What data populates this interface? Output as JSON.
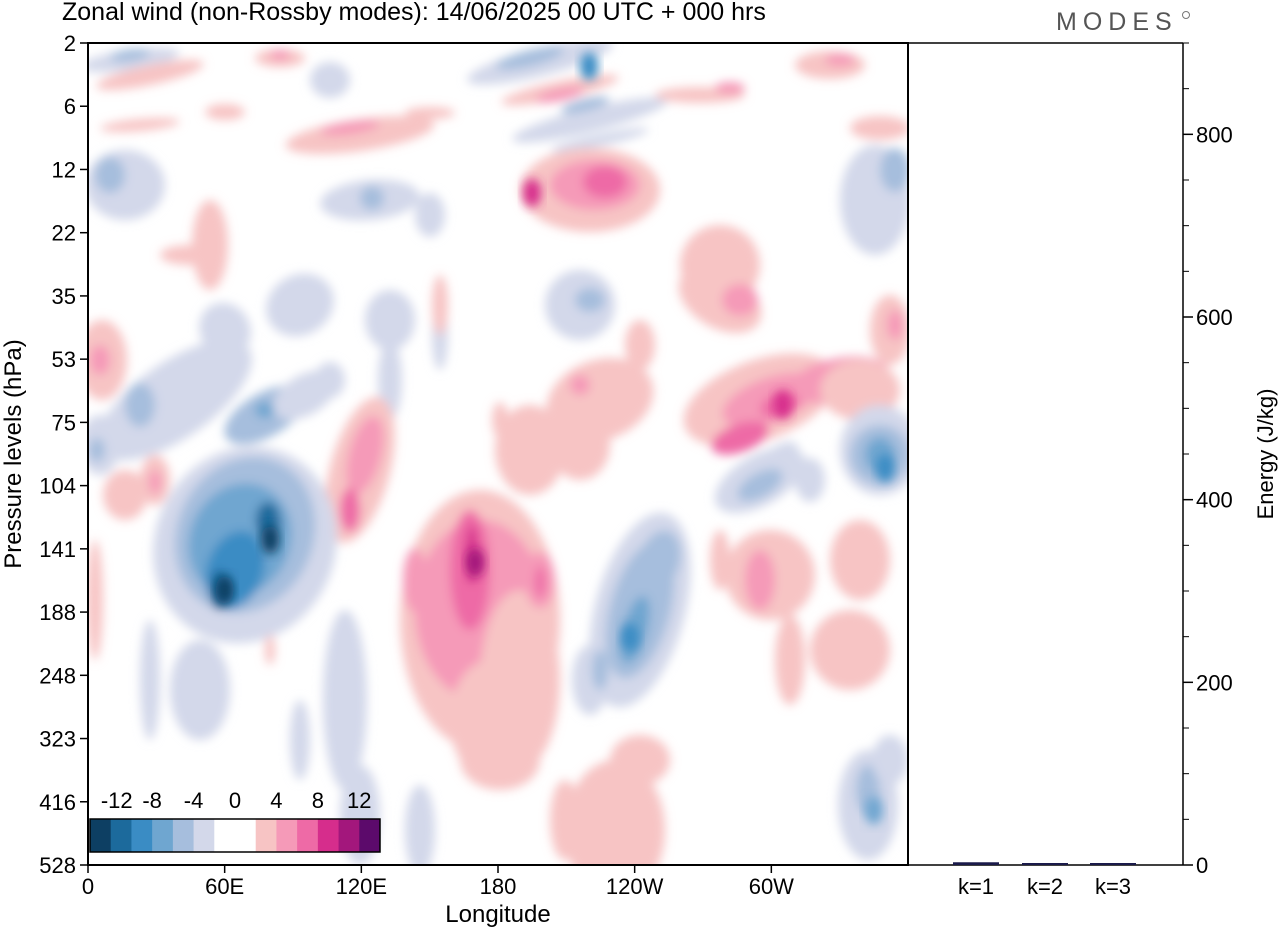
{
  "header": {
    "title": "Zonal wind (non-Rossby modes):  14/06/2025  00 UTC  + 000 hrs",
    "brand": "MODES"
  },
  "chart_data": [
    {
      "type": "heatmap",
      "title": "Zonal wind (non-Rossby modes):  14/06/2025  00 UTC  + 000 hrs",
      "xlabel": "Longitude",
      "ylabel": "Pressure levels (hPa)",
      "x_ticks": [
        "0",
        "60E",
        "120E",
        "180",
        "120W",
        "60W"
      ],
      "x_range_deg": [
        0,
        360
      ],
      "y_ticks": [
        "2",
        "6",
        "12",
        "22",
        "35",
        "53",
        "75",
        "104",
        "141",
        "188",
        "248",
        "323",
        "416",
        "528"
      ],
      "y_axis_direction": "pressure increasing downward",
      "colorbar": {
        "labels": [
          "-12",
          "-8",
          "-4",
          "0",
          "4",
          "8",
          "12"
        ],
        "colors": [
          "#0d3f63",
          "#1c6a9c",
          "#3a8cc4",
          "#6fa6d0",
          "#a6bedd",
          "#d3d8ea",
          "#ffffff",
          "#ffffff",
          "#f7c4c4",
          "#f59ab8",
          "#ee6aa6",
          "#d62d8c",
          "#a3177c",
          "#5c0a6b"
        ],
        "placement": "bottom-left"
      },
      "features": [
        {
          "label": "negative core",
          "lon": 60,
          "level_hpa": 170,
          "value": -14
        },
        {
          "label": "negative core",
          "lon": 80,
          "level_hpa": 135,
          "value": -13
        },
        {
          "label": "positive core",
          "lon": 170,
          "level_hpa": 150,
          "value": 11
        },
        {
          "label": "positive core",
          "lon": 195,
          "level_hpa": 15,
          "value": 9
        },
        {
          "label": "negative core",
          "lon": 238,
          "level_hpa": 210,
          "value": -9
        },
        {
          "label": "positive core",
          "lon": 305,
          "level_hpa": 68,
          "value": 9
        },
        {
          "label": "negative core",
          "lon": 350,
          "level_hpa": 95,
          "value": -9
        },
        {
          "label": "negative core",
          "lon": 220,
          "level_hpa": 3,
          "value": -8
        },
        {
          "label": "negative core",
          "lon": 345,
          "level_hpa": 430,
          "value": -6
        }
      ]
    },
    {
      "type": "bar",
      "xlabel": "",
      "ylabel": "Energy (J/kg)",
      "categories": [
        "k=1",
        "k=2",
        "k=3"
      ],
      "values": [
        3,
        2,
        1
      ],
      "ylim": [
        0,
        900
      ],
      "y_ticks": [
        "0",
        "200",
        "400",
        "600",
        "800"
      ]
    }
  ]
}
